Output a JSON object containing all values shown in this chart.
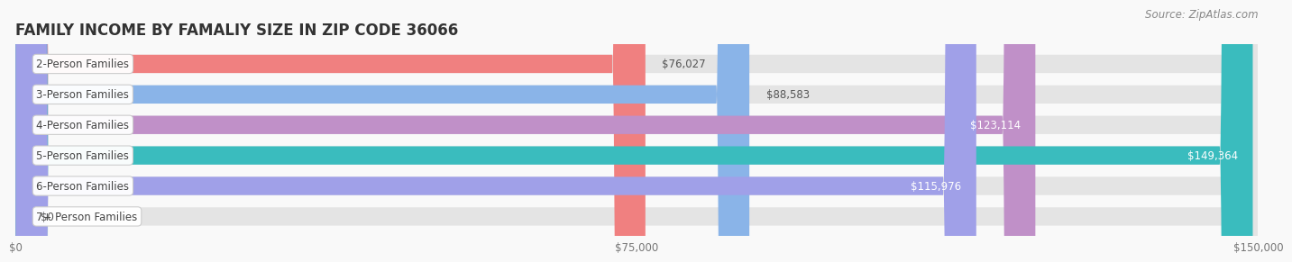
{
  "title": "FAMILY INCOME BY FAMALIY SIZE IN ZIP CODE 36066",
  "source": "Source: ZipAtlas.com",
  "categories": [
    "2-Person Families",
    "3-Person Families",
    "4-Person Families",
    "5-Person Families",
    "6-Person Families",
    "7+ Person Families"
  ],
  "values": [
    76027,
    88583,
    123114,
    149364,
    115976,
    0
  ],
  "bar_colors": [
    "#f08080",
    "#8ab4e8",
    "#c090c8",
    "#3abcbe",
    "#a0a0e8",
    "#f4a0b8"
  ],
  "label_colors": [
    "#666666",
    "#666666",
    "#ffffff",
    "#ffffff",
    "#ffffff",
    "#666666"
  ],
  "value_labels": [
    "$76,027",
    "$88,583",
    "$123,114",
    "$149,364",
    "$115,976",
    "$0"
  ],
  "xlim": [
    0,
    150000
  ],
  "xticks": [
    0,
    75000,
    150000
  ],
  "xtick_labels": [
    "$0",
    "$75,000",
    "$150,000"
  ],
  "title_fontsize": 12,
  "source_fontsize": 8.5,
  "label_fontsize": 8.5,
  "value_fontsize": 8.5,
  "bg_color": "#f9f9f9"
}
